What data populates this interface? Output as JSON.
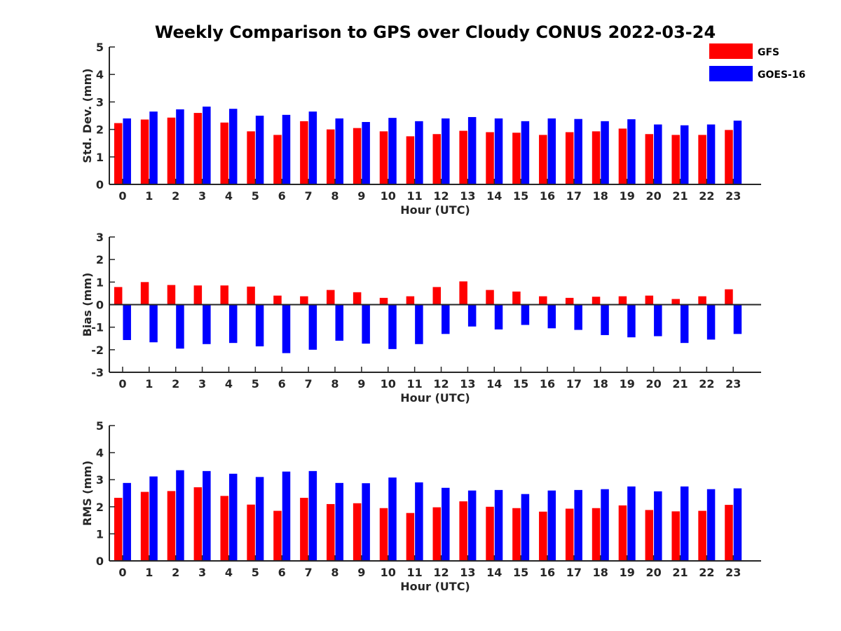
{
  "title": "Weekly Comparison to GPS over Cloudy CONUS 2022-03-24",
  "legend": {
    "placement": "top-right",
    "entries": [
      {
        "name": "GFS",
        "color": "#ff0000"
      },
      {
        "name": "GOES-16",
        "color": "#0000ff"
      }
    ]
  },
  "chart_data": [
    {
      "type": "bar",
      "xlabel": "Hour (UTC)",
      "ylabel": "Std. Dev. (mm)",
      "ylim": [
        0,
        5
      ],
      "yticks": [
        0,
        1,
        2,
        3,
        4,
        5
      ],
      "categories": [
        "0",
        "1",
        "2",
        "3",
        "4",
        "5",
        "6",
        "7",
        "8",
        "9",
        "10",
        "11",
        "12",
        "13",
        "14",
        "15",
        "16",
        "17",
        "18",
        "19",
        "20",
        "21",
        "22",
        "23"
      ],
      "series": [
        {
          "name": "GFS",
          "values": [
            2.23,
            2.36,
            2.43,
            2.6,
            2.25,
            1.93,
            1.8,
            2.3,
            2.0,
            2.05,
            1.93,
            1.75,
            1.83,
            1.95,
            1.9,
            1.88,
            1.8,
            1.9,
            1.93,
            2.03,
            1.83,
            1.8,
            1.8,
            1.98
          ]
        },
        {
          "name": "GOES-16",
          "values": [
            2.4,
            2.65,
            2.73,
            2.83,
            2.75,
            2.5,
            2.53,
            2.65,
            2.4,
            2.27,
            2.42,
            2.3,
            2.4,
            2.45,
            2.4,
            2.3,
            2.4,
            2.38,
            2.3,
            2.37,
            2.18,
            2.15,
            2.18,
            2.32
          ]
        }
      ]
    },
    {
      "type": "bar",
      "xlabel": "Hour (UTC)",
      "ylabel": "Bias (mm)",
      "ylim": [
        -3,
        3
      ],
      "yticks": [
        -3,
        -2,
        -1,
        0,
        1,
        2,
        3
      ],
      "categories": [
        "0",
        "1",
        "2",
        "3",
        "4",
        "5",
        "6",
        "7",
        "8",
        "9",
        "10",
        "11",
        "12",
        "13",
        "14",
        "15",
        "16",
        "17",
        "18",
        "19",
        "20",
        "21",
        "22",
        "23"
      ],
      "series": [
        {
          "name": "GFS",
          "values": [
            0.78,
            1.0,
            0.87,
            0.85,
            0.85,
            0.8,
            0.4,
            0.37,
            0.65,
            0.55,
            0.3,
            0.37,
            0.78,
            1.03,
            0.65,
            0.58,
            0.37,
            0.3,
            0.35,
            0.37,
            0.4,
            0.25,
            0.37,
            0.68
          ]
        },
        {
          "name": "GOES-16",
          "values": [
            -1.57,
            -1.67,
            -1.95,
            -1.75,
            -1.7,
            -1.85,
            -2.15,
            -2.0,
            -1.6,
            -1.73,
            -1.97,
            -1.75,
            -1.3,
            -0.97,
            -1.1,
            -0.9,
            -1.05,
            -1.12,
            -1.35,
            -1.45,
            -1.4,
            -1.7,
            -1.55,
            -1.3
          ]
        }
      ]
    },
    {
      "type": "bar",
      "xlabel": "Hour (UTC)",
      "ylabel": "RMS (mm)",
      "ylim": [
        0,
        5
      ],
      "yticks": [
        0,
        1,
        2,
        3,
        4,
        5
      ],
      "categories": [
        "0",
        "1",
        "2",
        "3",
        "4",
        "5",
        "6",
        "7",
        "8",
        "9",
        "10",
        "11",
        "12",
        "13",
        "14",
        "15",
        "16",
        "17",
        "18",
        "19",
        "20",
        "21",
        "22",
        "23"
      ],
      "series": [
        {
          "name": "GFS",
          "values": [
            2.33,
            2.55,
            2.58,
            2.72,
            2.4,
            2.08,
            1.85,
            2.33,
            2.1,
            2.13,
            1.95,
            1.77,
            1.98,
            2.2,
            2.0,
            1.95,
            1.82,
            1.93,
            1.95,
            2.05,
            1.88,
            1.83,
            1.85,
            2.07
          ]
        },
        {
          "name": "GOES-16",
          "values": [
            2.88,
            3.12,
            3.35,
            3.32,
            3.22,
            3.1,
            3.3,
            3.32,
            2.88,
            2.87,
            3.08,
            2.9,
            2.7,
            2.6,
            2.62,
            2.47,
            2.6,
            2.62,
            2.65,
            2.75,
            2.57,
            2.75,
            2.65,
            2.68
          ]
        }
      ]
    }
  ]
}
